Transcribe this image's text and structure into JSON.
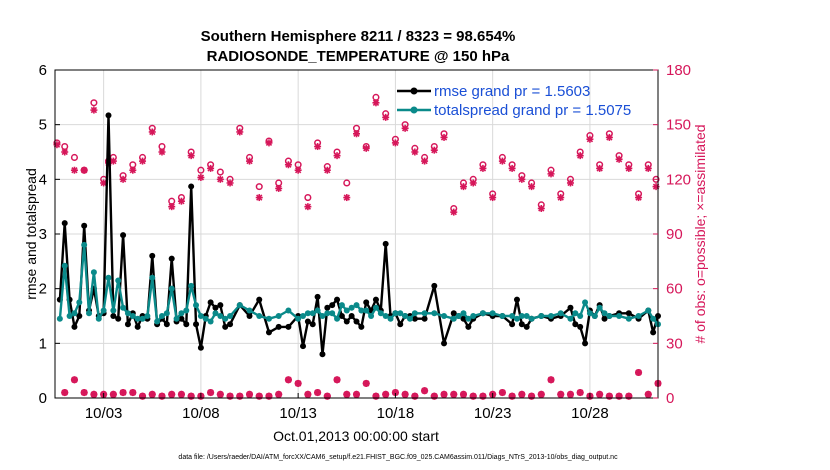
{
  "chart_data": {
    "type": "line",
    "title_line1": "Southern Hemisphere 8211 / 8323 = 98.654%",
    "title_line2": "RADIOSONDE_TEMPERATURE @ 150 hPa",
    "xlabel": "Oct.01,2013 00:00:00 start",
    "ylabel_left": "rmse and totalspread",
    "ylabel_right": "# of obs: o=possible; ×=assimilated",
    "footnote": "data file: /Users/raeder/DAI/ATM_forcXX/CAM6_setup/f.e21.FHIST_BGC.f09_025.CAM6assim.011/Diags_NTrS_2013-10/obs_diag_output.nc",
    "x_range": [
      0.5,
      31.5
    ],
    "y_left_range": [
      0,
      6
    ],
    "y_right_range": [
      0,
      180
    ],
    "x_tick_values": [
      3,
      8,
      13,
      18,
      23,
      28
    ],
    "x_tick_labels": [
      "10/03",
      "10/08",
      "10/13",
      "10/18",
      "10/23",
      "10/28"
    ],
    "y_left_ticks": [
      "0",
      "1",
      "2",
      "3",
      "4",
      "5",
      "6"
    ],
    "y_right_ticks": [
      "0",
      "30",
      "60",
      "90",
      "120",
      "150",
      "180"
    ],
    "colors": {
      "rmse": "#000000",
      "spread": "#0a8a8a",
      "obs": "#d6175a",
      "legend_text": "#1a4fd6",
      "grid": "#d9d9d9"
    },
    "legend": [
      {
        "label": "rmse grand pr = 1.5603",
        "series": "rmse"
      },
      {
        "label": "totalspread grand pr = 1.5075",
        "series": "spread"
      }
    ],
    "x": [
      0.75,
      1.0,
      1.25,
      1.5,
      1.75,
      2.0,
      2.25,
      2.5,
      2.75,
      3.0,
      3.25,
      3.5,
      3.75,
      4.0,
      4.25,
      4.5,
      4.75,
      5.0,
      5.25,
      5.5,
      5.75,
      6.0,
      6.25,
      6.5,
      6.75,
      7.0,
      7.25,
      7.5,
      7.75,
      8.0,
      8.25,
      8.5,
      8.75,
      9.0,
      9.25,
      9.5,
      10.0,
      10.5,
      11.0,
      11.5,
      12.0,
      12.5,
      13.0,
      13.25,
      13.5,
      13.75,
      14.0,
      14.25,
      14.5,
      14.75,
      15.0,
      15.25,
      15.5,
      15.75,
      16.0,
      16.25,
      16.5,
      16.75,
      17.0,
      17.25,
      17.5,
      17.75,
      18.0,
      18.25,
      18.5,
      18.75,
      19.0,
      19.5,
      20.0,
      20.5,
      21.0,
      21.25,
      21.5,
      21.75,
      22.0,
      22.5,
      23.0,
      23.5,
      24.0,
      24.25,
      24.5,
      24.75,
      25.0,
      25.5,
      26.0,
      26.5,
      27.0,
      27.25,
      27.5,
      27.75,
      28.0,
      28.25,
      28.5,
      28.75,
      29.0,
      29.5,
      30.0,
      30.5,
      31.0,
      31.25,
      31.5
    ],
    "series": [
      {
        "name": "rmse",
        "values": [
          1.8,
          3.2,
          1.8,
          1.3,
          1.5,
          3.15,
          1.6,
          2.0,
          1.5,
          1.55,
          5.17,
          1.5,
          1.45,
          2.98,
          1.35,
          1.55,
          1.3,
          1.5,
          1.45,
          2.6,
          1.35,
          1.45,
          1.35,
          2.55,
          1.4,
          1.45,
          1.35,
          3.87,
          1.35,
          0.92,
          1.5,
          1.75,
          1.65,
          1.7,
          1.3,
          1.35,
          1.7,
          1.5,
          1.8,
          1.2,
          1.3,
          1.3,
          1.5,
          0.95,
          1.4,
          1.35,
          1.85,
          0.8,
          1.65,
          1.7,
          1.8,
          1.5,
          1.4,
          1.5,
          1.4,
          1.3,
          1.75,
          1.6,
          1.8,
          1.6,
          2.82,
          1.5,
          1.55,
          1.35,
          1.5,
          1.5,
          1.45,
          1.45,
          2.05,
          1.0,
          1.55,
          1.5,
          1.45,
          1.3,
          1.45,
          1.55,
          1.5,
          1.5,
          1.35,
          1.8,
          1.35,
          1.3,
          1.45,
          1.5,
          1.45,
          1.5,
          1.65,
          1.35,
          1.3,
          1.0,
          1.6,
          1.5,
          1.7,
          1.45,
          1.5,
          1.55,
          1.55,
          1.45,
          1.6,
          1.2,
          1.5
        ]
      },
      {
        "name": "totalspread",
        "values": [
          1.45,
          2.42,
          1.5,
          1.55,
          1.75,
          2.8,
          1.55,
          2.3,
          1.45,
          1.6,
          2.2,
          1.6,
          2.15,
          1.65,
          1.55,
          1.5,
          1.45,
          1.45,
          1.5,
          2.2,
          1.4,
          1.5,
          1.55,
          2.0,
          1.45,
          1.55,
          1.6,
          2.05,
          1.7,
          1.5,
          1.45,
          1.4,
          1.55,
          1.5,
          1.45,
          1.5,
          1.7,
          1.6,
          1.5,
          1.45,
          1.5,
          1.6,
          1.45,
          1.5,
          1.55,
          1.55,
          1.6,
          1.5,
          1.55,
          1.55,
          1.45,
          1.7,
          1.6,
          1.65,
          1.7,
          1.6,
          1.6,
          1.5,
          1.65,
          1.55,
          1.5,
          1.45,
          1.55,
          1.55,
          1.5,
          1.45,
          1.55,
          1.55,
          1.55,
          1.5,
          1.45,
          1.5,
          1.55,
          1.45,
          1.5,
          1.55,
          1.55,
          1.5,
          1.5,
          1.45,
          1.5,
          1.5,
          1.45,
          1.5,
          1.5,
          1.55,
          1.45,
          1.55,
          1.5,
          1.75,
          1.55,
          1.5,
          1.65,
          1.55,
          1.5,
          1.5,
          1.45,
          1.5,
          1.6,
          1.45,
          1.35
        ]
      }
    ],
    "obs_x": [
      0.6,
      1.0,
      1.5,
      2.0,
      2.5,
      3.0,
      3.25,
      3.5,
      4.0,
      4.5,
      5.0,
      5.5,
      6.0,
      6.5,
      7.0,
      7.5,
      8.0,
      8.5,
      9.0,
      9.5,
      10.0,
      10.5,
      11.0,
      11.5,
      12.0,
      12.5,
      13.0,
      13.5,
      14.0,
      14.5,
      15.0,
      15.5,
      16.0,
      16.5,
      17.0,
      17.5,
      18.0,
      18.5,
      19.0,
      19.5,
      20.0,
      20.5,
      21.0,
      21.5,
      22.0,
      22.5,
      23.0,
      23.5,
      24.0,
      24.5,
      25.0,
      25.5,
      26.0,
      26.5,
      27.0,
      27.5,
      28.0,
      28.5,
      29.0,
      29.5,
      30.0,
      30.5,
      31.0,
      31.4
    ],
    "obs_possible": [
      140,
      138,
      132,
      125,
      162,
      120,
      130,
      132,
      122,
      128,
      132,
      148,
      138,
      108,
      110,
      135,
      125,
      128,
      124,
      120,
      148,
      132,
      116,
      141,
      118,
      130,
      128,
      110,
      140,
      127,
      135,
      118,
      148,
      138,
      165,
      156,
      142,
      150,
      137,
      132,
      138,
      145,
      104,
      118,
      120,
      128,
      112,
      132,
      128,
      122,
      118,
      106,
      125,
      112,
      120,
      135,
      144,
      128,
      145,
      133,
      128,
      112,
      128,
      120
    ],
    "obs_assimilated": [
      139,
      135,
      125,
      125,
      158,
      118,
      129,
      130,
      120,
      125,
      130,
      146,
      135,
      105,
      108,
      133,
      121,
      126,
      120,
      118,
      146,
      130,
      110,
      140,
      115,
      128,
      125,
      105,
      138,
      125,
      133,
      110,
      145,
      137,
      162,
      154,
      140,
      148,
      135,
      130,
      136,
      143,
      102,
      116,
      118,
      126,
      110,
      130,
      126,
      120,
      116,
      104,
      123,
      110,
      118,
      133,
      142,
      126,
      143,
      131,
      126,
      110,
      126,
      116
    ],
    "obs_low_x": [
      1.0,
      1.5,
      2.0,
      2.5,
      3.0,
      3.5,
      4.0,
      4.5,
      5.0,
      5.5,
      6.0,
      6.5,
      7.0,
      7.5,
      8.0,
      8.5,
      9.0,
      9.5,
      10.0,
      10.5,
      11.0,
      11.5,
      12.0,
      12.5,
      13.0,
      13.5,
      14.0,
      14.5,
      15.0,
      15.5,
      16.0,
      16.5,
      17.0,
      17.5,
      18.0,
      18.5,
      19.0,
      19.5,
      20.0,
      20.5,
      21.0,
      21.5,
      22.0,
      22.5,
      23.0,
      23.5,
      24.0,
      24.5,
      25.0,
      25.5,
      26.0,
      26.5,
      27.0,
      27.5,
      28.0,
      28.5,
      29.0,
      29.5,
      30.0,
      30.5,
      31.0,
      31.5
    ],
    "obs_low": [
      3,
      10,
      3,
      2,
      2,
      2,
      3,
      3,
      1,
      2,
      1,
      2,
      2,
      1,
      1,
      3,
      2,
      1,
      1,
      2,
      1,
      1,
      2,
      10,
      8,
      2,
      3,
      1,
      10,
      2,
      2,
      8,
      1,
      2,
      3,
      2,
      1,
      4,
      1,
      2,
      2,
      2,
      1,
      1,
      2,
      3,
      1,
      2,
      1,
      2,
      10,
      2,
      2,
      3,
      1,
      2,
      1,
      1,
      1,
      14,
      2,
      8
    ]
  }
}
